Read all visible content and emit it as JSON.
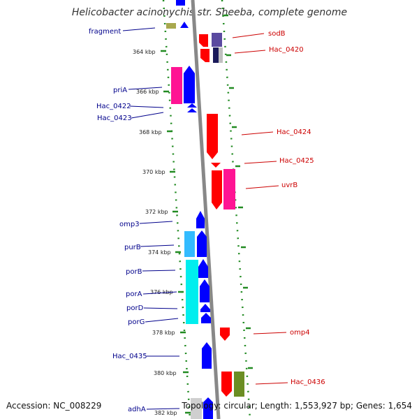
{
  "title": "Helicobacter acinonychis str. Sheeba, complete genome",
  "footer": {
    "accession": "Accession: NC_008229",
    "topology": "Topology: circular; Length: 1,553,927 bp; Genes: 1,654"
  },
  "ticks": [
    "364 kbp",
    "366 kbp",
    "368 kbp",
    "370 kbp",
    "372 kbp",
    "374 kbp",
    "376 kbp",
    "378 kbp",
    "380 kbp",
    "382 kbp"
  ],
  "left_labels": [
    "fragment",
    "priA",
    "Hac_0422",
    "Hac_0423",
    "omp3",
    "purB",
    "porB",
    "porA",
    "porD",
    "porG",
    "Hac_0435",
    "adhA"
  ],
  "right_labels": [
    "sodB",
    "Hac_0420",
    "Hac_0424",
    "Hac_0425",
    "uvrB",
    "omp4",
    "Hac_0436"
  ],
  "colors": {
    "forward_gene": "#0000ff",
    "reverse_gene": "#ff0000",
    "magenta_track": "#ff1493",
    "cyan_track": "#00ccff",
    "olive_track": "#6b8e23",
    "backbone": "#808080",
    "tick_dots": "#228b22",
    "left_label": "#00008b",
    "right_label": "#cc0000"
  }
}
